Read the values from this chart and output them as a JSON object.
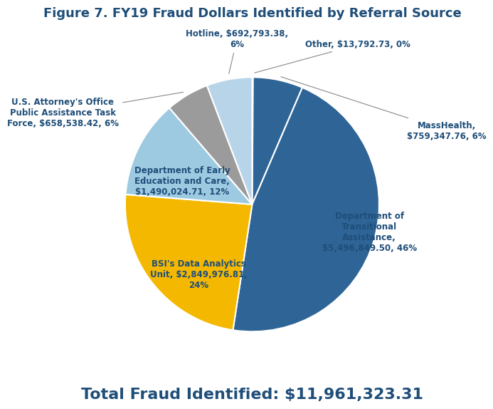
{
  "title": "Figure 7. FY19 Fraud Dollars Identified by Referral Source",
  "total_label": "Total Fraud Identified: $11,961,323.31",
  "slices": [
    {
      "label": "Other, $13,792.73, 0%",
      "value": 13792.73,
      "color": "#F5E4A0"
    },
    {
      "label": "MassHealth,\n$759,347.76, 6%",
      "value": 759347.76,
      "color": "#2E6496"
    },
    {
      "label": "Department of\nTransitional\nAssistance,\n$5,496,849.50, 46%",
      "value": 5496849.5,
      "color": "#2E6496"
    },
    {
      "label": "BSI's Data Analytics\nUnit, $2,849,976.81,\n24%",
      "value": 2849976.81,
      "color": "#F5B800"
    },
    {
      "label": "Department of Early\nEducation and Care,\n$1,490,024.71, 12%",
      "value": 1490024.71,
      "color": "#9ECAE1"
    },
    {
      "label": "U.S. Attorney's Office\nPublic Assistance Task\nForce, $658,538.42, 6%",
      "value": 658538.42,
      "color": "#9B9B9B"
    },
    {
      "label": "Hotline, $692,793.38,\n6%",
      "value": 692793.38,
      "color": "#B8D4E8"
    }
  ],
  "title_color": "#1F4E79",
  "label_color": "#1F4E79",
  "total_fontsize": 16,
  "title_fontsize": 13,
  "label_fontsize": 8.5
}
